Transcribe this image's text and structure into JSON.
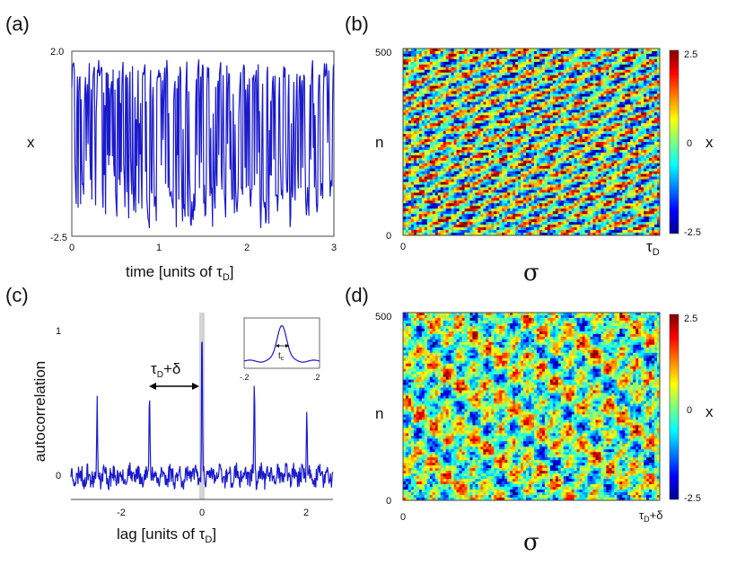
{
  "panel_labels": {
    "a": "(a)",
    "b": "(b)",
    "c": "(c)",
    "d": "(d)"
  },
  "chart_data": [
    {
      "id": "a",
      "type": "line",
      "xlabel_main": "time [units of τ",
      "xlabel_sub": "D",
      "xlabel_end": "]",
      "ylabel": "x",
      "xlim": [
        0,
        3
      ],
      "ylim": [
        -2.5,
        2.0
      ],
      "xticks": [
        "0",
        "1",
        "2",
        "3"
      ],
      "yticks": [
        "2.0",
        "-2.5"
      ],
      "series_color": "#1a1acc",
      "seed": 11
    },
    {
      "id": "b",
      "type": "heatmap",
      "xlabel": "σ",
      "ylabel": "n",
      "xticks": [
        "0",
        "τ"
      ],
      "xtick_sub": "D",
      "yticks": [
        "500",
        "0"
      ],
      "ylim": [
        0,
        500
      ],
      "colorbar": {
        "label": "x",
        "ticks": [
          "2.5",
          "0",
          "-2.5"
        ],
        "range": [
          -2.5,
          2.5
        ]
      },
      "pattern": "diagonal"
    },
    {
      "id": "c",
      "type": "line",
      "xlabel_main": "lag [units of τ",
      "xlabel_sub": "D",
      "xlabel_end": "]",
      "ylabel": "autocorrelation",
      "xlim": [
        -2.5,
        2.5
      ],
      "ylim": [
        -0.15,
        1.05
      ],
      "xticks": [
        "-2",
        "0",
        "2"
      ],
      "yticks": [
        "1",
        "0"
      ],
      "peaks": [
        {
          "x": -2.0,
          "y": 0.47
        },
        {
          "x": -1.0,
          "y": 0.59
        },
        {
          "x": 0.0,
          "y": 1.0
        },
        {
          "x": 1.0,
          "y": 0.58
        },
        {
          "x": 2.0,
          "y": 0.46
        }
      ],
      "annotation_main": "τ",
      "annotation_sub": "D",
      "annotation_end": "+δ",
      "inset": {
        "xticks": [
          "-.2",
          ".2"
        ],
        "label_main": "t",
        "label_sub": "c"
      },
      "series_color": "#1a1acc",
      "seed": 23
    },
    {
      "id": "d",
      "type": "heatmap",
      "xlabel": "σ",
      "ylabel": "n",
      "xticks": [
        "0",
        "τ"
      ],
      "xtick_sub": "D",
      "xtick_end": "+δ",
      "yticks": [
        "500",
        "0"
      ],
      "ylim": [
        0,
        500
      ],
      "colorbar": {
        "label": "x",
        "ticks": [
          "2.5",
          "0",
          "-2.5"
        ],
        "range": [
          -2.5,
          2.5
        ]
      },
      "pattern": "blobs"
    }
  ]
}
